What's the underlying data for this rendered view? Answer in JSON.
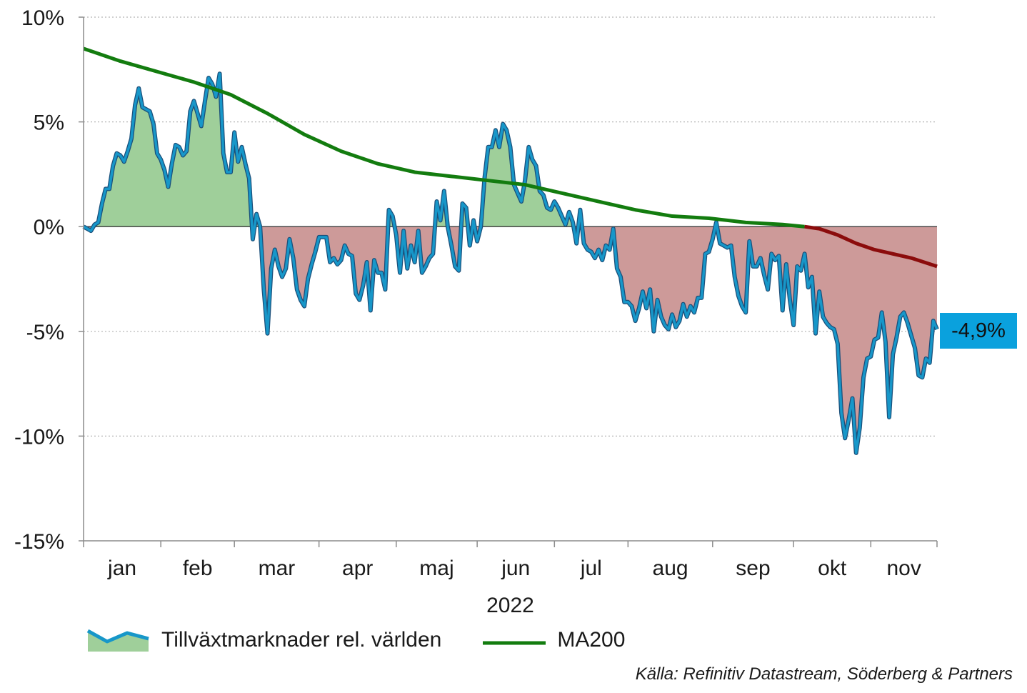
{
  "chart_data": {
    "type": "area",
    "x_unit": "trading day index 0-232 (jan-nov 2022)",
    "xlabel": "2022",
    "ylim": [
      -15,
      10
    ],
    "yticks": [
      -15,
      -10,
      -5,
      0,
      5,
      10
    ],
    "ytick_labels": [
      "-15%",
      "-10%",
      "-5%",
      "0%",
      "5%",
      "10%"
    ],
    "grid": true,
    "legend_position": "bottom",
    "months": [
      {
        "label": "jan",
        "start": 0,
        "end": 21
      },
      {
        "label": "feb",
        "start": 21,
        "end": 41
      },
      {
        "label": "mar",
        "start": 41,
        "end": 64
      },
      {
        "label": "apr",
        "start": 64,
        "end": 85
      },
      {
        "label": "maj",
        "start": 85,
        "end": 107
      },
      {
        "label": "jun",
        "start": 107,
        "end": 128
      },
      {
        "label": "jul",
        "start": 128,
        "end": 148
      },
      {
        "label": "aug",
        "start": 148,
        "end": 171
      },
      {
        "label": "sep",
        "start": 171,
        "end": 193
      },
      {
        "label": "okt",
        "start": 193,
        "end": 214
      },
      {
        "label": "nov",
        "start": 214,
        "end": 232
      }
    ],
    "series": [
      {
        "name": "Tillväxtmarknader rel. världen",
        "color": "#1797c9",
        "positive_fill": "#9fcf9a",
        "negative_fill": "#cd9a99",
        "points": [
          [
            0,
            0.0
          ],
          [
            1,
            -0.1
          ],
          [
            2,
            -0.2
          ],
          [
            3,
            0.1
          ],
          [
            4,
            0.2
          ],
          [
            5,
            1.1
          ],
          [
            6,
            1.8
          ],
          [
            7,
            1.8
          ],
          [
            8,
            2.9
          ],
          [
            9,
            3.5
          ],
          [
            10,
            3.4
          ],
          [
            11,
            3.1
          ],
          [
            12,
            3.6
          ],
          [
            13,
            4.2
          ],
          [
            14,
            5.8
          ],
          [
            15,
            6.6
          ],
          [
            16,
            5.7
          ],
          [
            17,
            5.6
          ],
          [
            18,
            5.5
          ],
          [
            19,
            4.9
          ],
          [
            20,
            3.5
          ],
          [
            21,
            3.2
          ],
          [
            22,
            2.7
          ],
          [
            23,
            1.9
          ],
          [
            24,
            3.0
          ],
          [
            25,
            3.9
          ],
          [
            26,
            3.8
          ],
          [
            27,
            3.4
          ],
          [
            28,
            3.6
          ],
          [
            29,
            5.5
          ],
          [
            30,
            6.0
          ],
          [
            31,
            5.4
          ],
          [
            32,
            4.8
          ],
          [
            33,
            6.0
          ],
          [
            34,
            7.1
          ],
          [
            35,
            6.8
          ],
          [
            36,
            6.2
          ],
          [
            37,
            7.3
          ],
          [
            38,
            3.5
          ],
          [
            39,
            2.6
          ],
          [
            40,
            2.6
          ],
          [
            41,
            4.5
          ],
          [
            42,
            3.1
          ],
          [
            43,
            3.8
          ],
          [
            44,
            3.0
          ],
          [
            45,
            2.3
          ],
          [
            46,
            -0.6
          ],
          [
            47,
            0.6
          ],
          [
            48,
            0.0
          ],
          [
            49,
            -3.0
          ],
          [
            50,
            -5.1
          ],
          [
            51,
            -2.0
          ],
          [
            52,
            -1.1
          ],
          [
            53,
            -1.9
          ],
          [
            54,
            -2.4
          ],
          [
            55,
            -2.0
          ],
          [
            56,
            -0.6
          ],
          [
            57,
            -1.5
          ],
          [
            58,
            -3.0
          ],
          [
            59,
            -3.5
          ],
          [
            60,
            -3.8
          ],
          [
            61,
            -2.5
          ],
          [
            62,
            -1.8
          ],
          [
            63,
            -1.2
          ],
          [
            64,
            -0.5
          ],
          [
            65,
            -0.5
          ],
          [
            66,
            -0.5
          ],
          [
            67,
            -1.7
          ],
          [
            68,
            -1.5
          ],
          [
            69,
            -1.8
          ],
          [
            70,
            -1.6
          ],
          [
            71,
            -0.9
          ],
          [
            72,
            -1.3
          ],
          [
            73,
            -1.4
          ],
          [
            74,
            -3.2
          ],
          [
            75,
            -3.5
          ],
          [
            76,
            -2.8
          ],
          [
            77,
            -1.7
          ],
          [
            78,
            -4.0
          ],
          [
            79,
            -1.6
          ],
          [
            80,
            -2.2
          ],
          [
            81,
            -2.2
          ],
          [
            82,
            -3.0
          ],
          [
            83,
            0.8
          ],
          [
            84,
            0.5
          ],
          [
            85,
            -0.4
          ],
          [
            86,
            -2.2
          ],
          [
            87,
            -0.2
          ],
          [
            88,
            -2.0
          ],
          [
            89,
            -0.9
          ],
          [
            90,
            -1.7
          ],
          [
            91,
            -0.2
          ],
          [
            92,
            -2.2
          ],
          [
            93,
            -1.9
          ],
          [
            94,
            -1.5
          ],
          [
            95,
            -1.3
          ],
          [
            96,
            1.2
          ],
          [
            97,
            0.3
          ],
          [
            98,
            1.7
          ],
          [
            99,
            0.0
          ],
          [
            100,
            -0.9
          ],
          [
            101,
            -1.9
          ],
          [
            102,
            -2.1
          ],
          [
            103,
            1.1
          ],
          [
            104,
            0.9
          ],
          [
            105,
            -0.9
          ],
          [
            106,
            0.3
          ],
          [
            107,
            -0.7
          ],
          [
            108,
            0.0
          ],
          [
            109,
            2.3
          ],
          [
            110,
            3.8
          ],
          [
            111,
            3.8
          ],
          [
            112,
            4.6
          ],
          [
            113,
            3.8
          ],
          [
            114,
            4.9
          ],
          [
            115,
            4.6
          ],
          [
            116,
            3.8
          ],
          [
            117,
            2.0
          ],
          [
            118,
            1.6
          ],
          [
            119,
            1.2
          ],
          [
            120,
            2.2
          ],
          [
            121,
            3.8
          ],
          [
            122,
            3.2
          ],
          [
            123,
            2.9
          ],
          [
            124,
            1.7
          ],
          [
            125,
            1.5
          ],
          [
            126,
            0.9
          ],
          [
            127,
            0.8
          ],
          [
            128,
            1.2
          ],
          [
            129,
            0.9
          ],
          [
            130,
            0.5
          ],
          [
            131,
            0.1
          ],
          [
            132,
            0.7
          ],
          [
            133,
            0.2
          ],
          [
            134,
            -0.8
          ],
          [
            135,
            0.8
          ],
          [
            136,
            -0.8
          ],
          [
            137,
            -1.1
          ],
          [
            138,
            -1.2
          ],
          [
            139,
            -1.5
          ],
          [
            140,
            -1.1
          ],
          [
            141,
            -1.6
          ],
          [
            142,
            -0.9
          ],
          [
            143,
            -1.1
          ],
          [
            144,
            -0.1
          ],
          [
            145,
            -2.0
          ],
          [
            146,
            -2.4
          ],
          [
            147,
            -3.6
          ],
          [
            148,
            -3.6
          ],
          [
            149,
            -3.8
          ],
          [
            150,
            -4.5
          ],
          [
            151,
            -3.9
          ],
          [
            152,
            -3.1
          ],
          [
            153,
            -3.9
          ],
          [
            154,
            -3.0
          ],
          [
            155,
            -5.0
          ],
          [
            156,
            -3.5
          ],
          [
            157,
            -4.3
          ],
          [
            158,
            -4.7
          ],
          [
            159,
            -4.9
          ],
          [
            160,
            -4.2
          ],
          [
            161,
            -4.8
          ],
          [
            162,
            -4.5
          ],
          [
            163,
            -3.7
          ],
          [
            164,
            -4.3
          ],
          [
            165,
            -3.8
          ],
          [
            166,
            -4.1
          ],
          [
            167,
            -3.4
          ],
          [
            168,
            -3.4
          ],
          [
            169,
            -1.3
          ],
          [
            170,
            -1.2
          ],
          [
            171,
            -0.6
          ],
          [
            172,
            0.2
          ],
          [
            173,
            -0.8
          ],
          [
            174,
            -0.9
          ],
          [
            175,
            -1.0
          ],
          [
            176,
            -0.9
          ],
          [
            177,
            -2.4
          ],
          [
            178,
            -3.3
          ],
          [
            179,
            -3.8
          ],
          [
            180,
            -4.1
          ],
          [
            181,
            -0.7
          ],
          [
            182,
            -1.9
          ],
          [
            183,
            -1.9
          ],
          [
            184,
            -1.5
          ],
          [
            185,
            -2.3
          ],
          [
            186,
            -3.0
          ],
          [
            187,
            -1.3
          ],
          [
            188,
            -1.6
          ],
          [
            189,
            -1.4
          ],
          [
            190,
            -4.0
          ],
          [
            191,
            -1.8
          ],
          [
            192,
            -3.5
          ],
          [
            193,
            -4.7
          ],
          [
            194,
            -1.9
          ],
          [
            195,
            -2.1
          ],
          [
            196,
            -1.3
          ],
          [
            197,
            -2.9
          ],
          [
            198,
            -2.4
          ],
          [
            199,
            -5.1
          ],
          [
            200,
            -3.1
          ],
          [
            201,
            -4.3
          ],
          [
            202,
            -4.6
          ],
          [
            203,
            -4.8
          ],
          [
            204,
            -4.9
          ],
          [
            205,
            -5.6
          ],
          [
            206,
            -8.9
          ],
          [
            207,
            -10.1
          ],
          [
            208,
            -9.2
          ],
          [
            209,
            -8.2
          ],
          [
            210,
            -10.8
          ],
          [
            211,
            -9.6
          ],
          [
            212,
            -7.2
          ],
          [
            213,
            -6.3
          ],
          [
            214,
            -6.2
          ],
          [
            215,
            -5.4
          ],
          [
            216,
            -5.3
          ],
          [
            217,
            -4.1
          ],
          [
            218,
            -5.5
          ],
          [
            219,
            -9.1
          ],
          [
            220,
            -6.1
          ],
          [
            221,
            -5.3
          ],
          [
            222,
            -4.3
          ],
          [
            223,
            -4.1
          ],
          [
            224,
            -4.6
          ],
          [
            225,
            -5.2
          ],
          [
            226,
            -5.8
          ],
          [
            227,
            -7.1
          ],
          [
            228,
            -7.2
          ],
          [
            229,
            -6.3
          ],
          [
            230,
            -6.5
          ],
          [
            231,
            -4.5
          ],
          [
            232,
            -4.9
          ]
        ]
      },
      {
        "name": "MA200",
        "color": "#137c0f",
        "below_zero_color": "#8b0c0c",
        "points": [
          [
            0,
            8.5
          ],
          [
            10,
            7.9
          ],
          [
            20,
            7.4
          ],
          [
            30,
            6.9
          ],
          [
            40,
            6.3
          ],
          [
            50,
            5.4
          ],
          [
            60,
            4.4
          ],
          [
            70,
            3.6
          ],
          [
            80,
            3.0
          ],
          [
            90,
            2.6
          ],
          [
            100,
            2.4
          ],
          [
            110,
            2.2
          ],
          [
            120,
            2.0
          ],
          [
            130,
            1.6
          ],
          [
            140,
            1.2
          ],
          [
            150,
            0.8
          ],
          [
            160,
            0.5
          ],
          [
            170,
            0.4
          ],
          [
            180,
            0.2
          ],
          [
            190,
            0.1
          ],
          [
            196,
            0.0
          ],
          [
            200,
            -0.1
          ],
          [
            205,
            -0.4
          ],
          [
            210,
            -0.8
          ],
          [
            215,
            -1.1
          ],
          [
            220,
            -1.3
          ],
          [
            225,
            -1.5
          ],
          [
            232,
            -1.9
          ]
        ]
      }
    ],
    "last_value_label": "-4,9%"
  },
  "legend": {
    "series1_label": "Tillväxtmarknader rel. världen",
    "series2_label": "MA200"
  },
  "source": "Källa: Refinitiv Datastream, Söderberg & Partners"
}
